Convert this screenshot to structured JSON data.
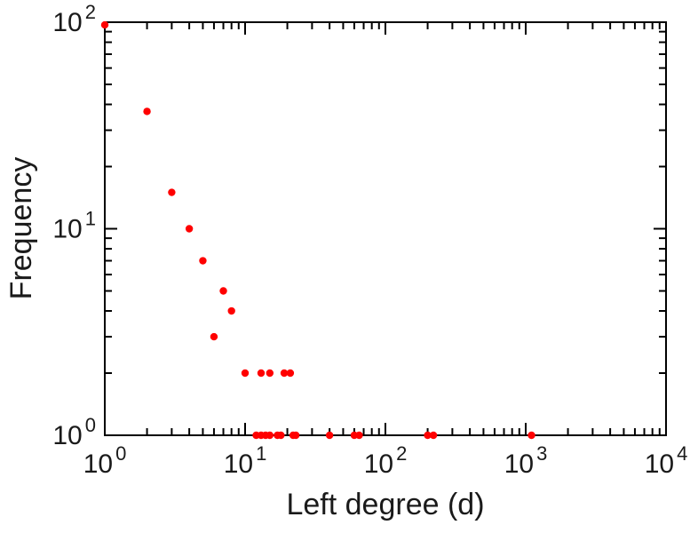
{
  "figure": {
    "background": "#ffffff",
    "text_color": "#1a1a1a"
  },
  "chart_data": {
    "type": "scatter",
    "title": "",
    "xlabel": "Left degree (d)",
    "ylabel": "Frequency",
    "x_scale": "log",
    "y_scale": "log",
    "xlim": [
      1,
      10000
    ],
    "ylim": [
      1,
      100
    ],
    "grid": false,
    "axis_color": "#000000",
    "tick_label_color": "#1a1a1a",
    "marker": {
      "shape": "circle",
      "color": "#ff0000",
      "radius_px": 4.2
    },
    "x_ticks": [
      {
        "value": 1,
        "base": "10",
        "exp": "0"
      },
      {
        "value": 10,
        "base": "10",
        "exp": "1"
      },
      {
        "value": 100,
        "base": "10",
        "exp": "2"
      },
      {
        "value": 1000,
        "base": "10",
        "exp": "3"
      },
      {
        "value": 10000,
        "base": "10",
        "exp": "4"
      }
    ],
    "y_ticks": [
      {
        "value": 1,
        "base": "10",
        "exp": "0"
      },
      {
        "value": 10,
        "base": "10",
        "exp": "1"
      },
      {
        "value": 100,
        "base": "10",
        "exp": "2"
      }
    ],
    "points": [
      [
        1,
        97
      ],
      [
        2,
        37
      ],
      [
        3,
        15
      ],
      [
        4,
        10
      ],
      [
        5,
        7
      ],
      [
        6,
        3
      ],
      [
        7,
        5
      ],
      [
        8,
        4
      ],
      [
        10,
        2
      ],
      [
        13,
        2
      ],
      [
        15,
        2
      ],
      [
        19,
        2
      ],
      [
        21,
        2
      ],
      [
        12,
        1
      ],
      [
        13,
        1
      ],
      [
        14,
        1
      ],
      [
        15,
        1
      ],
      [
        17,
        1
      ],
      [
        18,
        1
      ],
      [
        22,
        1
      ],
      [
        23,
        1
      ],
      [
        40,
        1
      ],
      [
        60,
        1
      ],
      [
        65,
        1
      ],
      [
        200,
        1
      ],
      [
        220,
        1
      ],
      [
        1100,
        1
      ]
    ]
  }
}
